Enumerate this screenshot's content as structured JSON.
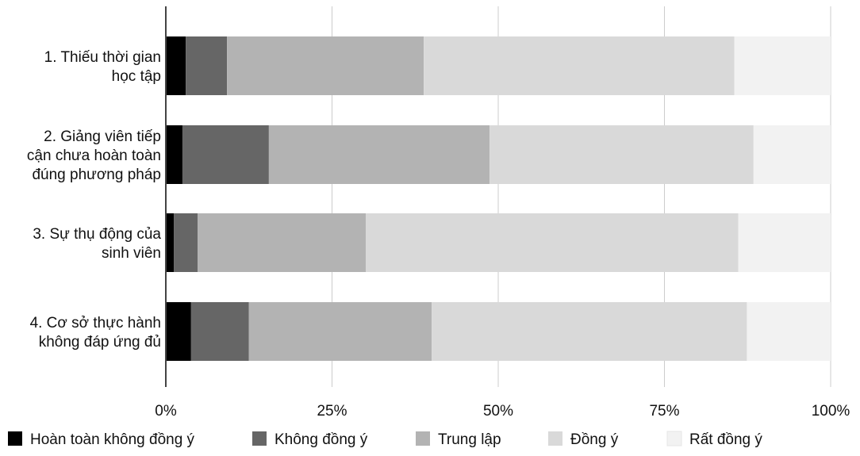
{
  "chart_data": {
    "type": "bar",
    "orientation": "horizontal",
    "stacked": "percent",
    "categories": [
      [
        "1. Thiếu thời gian",
        "học tập"
      ],
      [
        "2. Giảng viên tiếp",
        "cận chưa hoàn toàn",
        "đúng phương pháp"
      ],
      [
        "3. Sự thụ động của",
        "sinh viên"
      ],
      [
        "4. Cơ sở thực hành",
        "không đáp ứng đủ"
      ]
    ],
    "series": [
      {
        "name": "Hoàn toàn không đồng ý",
        "color": "#000000",
        "values": [
          3,
          2.5,
          1.2,
          3.8
        ]
      },
      {
        "name": "Không đồng ý",
        "color": "#666666",
        "values": [
          6.2,
          13,
          3.6,
          8.7
        ]
      },
      {
        "name": "Trung lập",
        "color": "#b3b3b3",
        "values": [
          29.6,
          33.2,
          25.3,
          27.5
        ]
      },
      {
        "name": "Đồng ý",
        "color": "#d9d9d9",
        "values": [
          46.7,
          39.7,
          56,
          47.4
        ]
      },
      {
        "name": "Rất đồng ý",
        "color": "#f2f2f2",
        "values": [
          14.5,
          11.6,
          13.9,
          12.6
        ]
      }
    ],
    "xlim": [
      0,
      100
    ],
    "xticks": [
      "0%",
      "25%",
      "50%",
      "75%",
      "100%"
    ],
    "grid": true,
    "legend": "bottom"
  }
}
